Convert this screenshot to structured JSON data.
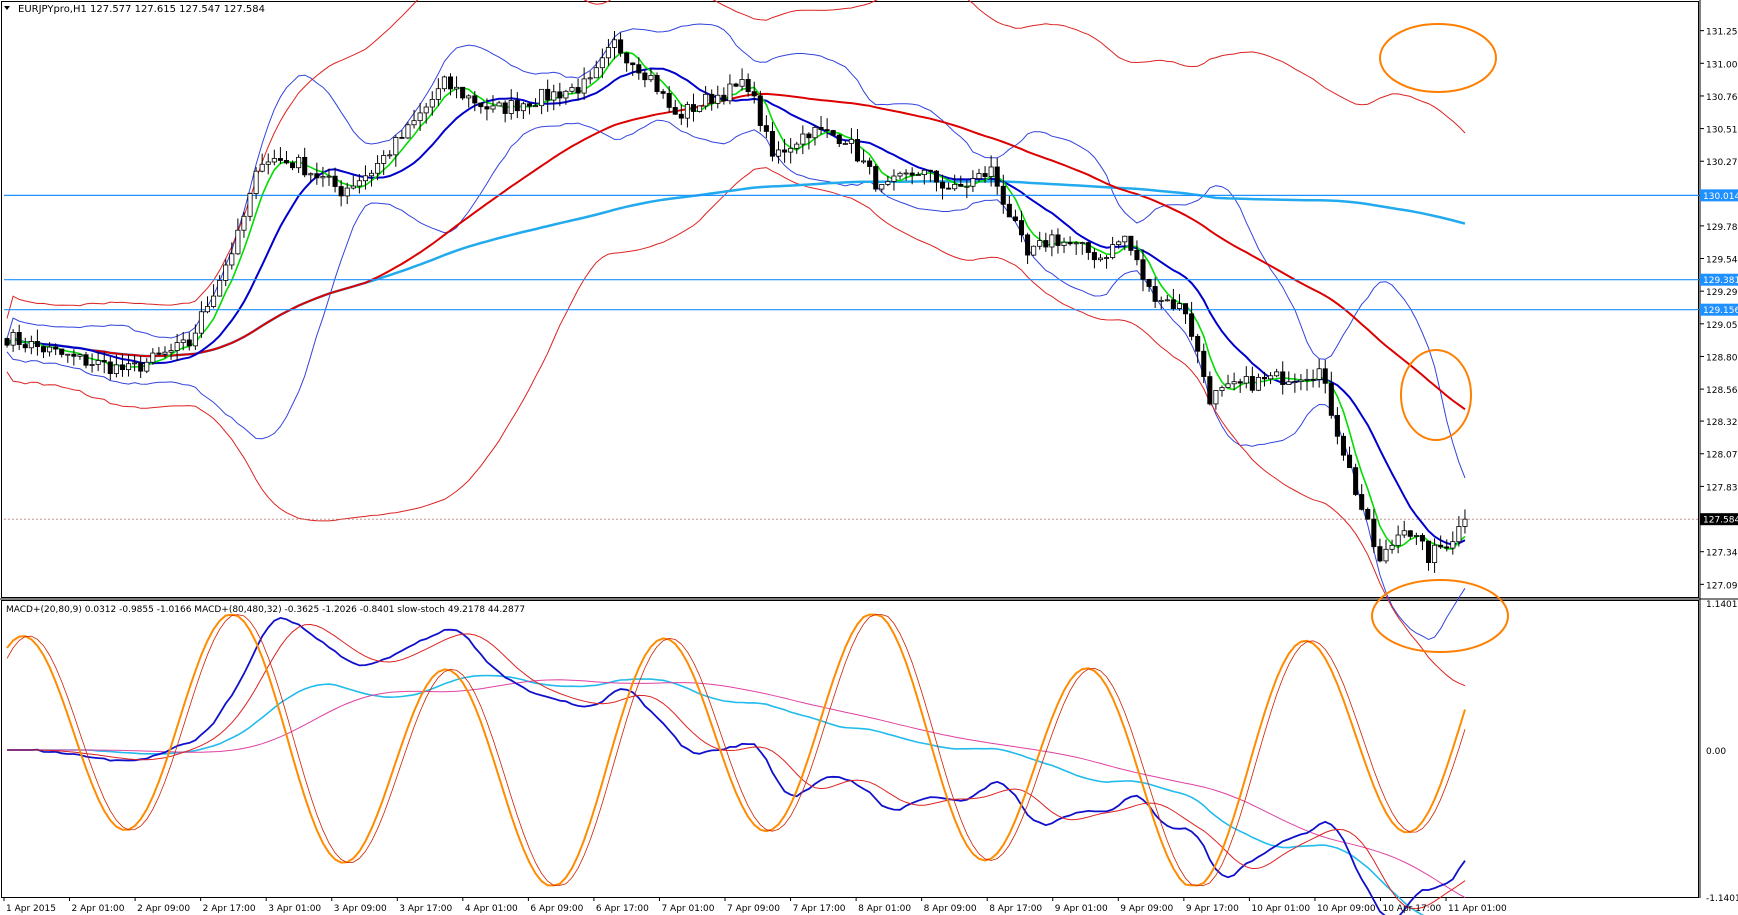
{
  "chart_data": [
    {
      "type": "candlestick",
      "symbol_header": "EURJPYpro,H1  127.577 127.615 127.547 127.584",
      "ylim": [
        127.0,
        131.45
      ],
      "y_ticks": [
        "131.250",
        "131.005",
        "130.760",
        "130.515",
        "130.270",
        "130.030",
        "129.785",
        "129.540",
        "129.295",
        "129.050",
        "128.805",
        "128.560",
        "128.320",
        "128.075",
        "127.830",
        "127.584",
        "127.340",
        "127.095"
      ],
      "price_tags": [
        {
          "label": "130.014",
          "value": 130.014
        },
        {
          "label": "129.381",
          "value": 129.381
        },
        {
          "label": "129.156",
          "value": 129.156
        },
        {
          "label": "127.584",
          "value": 127.584
        }
      ],
      "current_price": 127.584,
      "anchors": [
        {
          "i": 0,
          "y": 128.95
        },
        {
          "i": 10,
          "y": 128.8
        },
        {
          "i": 20,
          "y": 128.7
        },
        {
          "i": 30,
          "y": 128.9
        },
        {
          "i": 38,
          "y": 129.7
        },
        {
          "i": 42,
          "y": 130.3
        },
        {
          "i": 48,
          "y": 130.25
        },
        {
          "i": 55,
          "y": 130.05
        },
        {
          "i": 60,
          "y": 130.2
        },
        {
          "i": 66,
          "y": 130.5
        },
        {
          "i": 72,
          "y": 130.85
        },
        {
          "i": 80,
          "y": 130.65
        },
        {
          "i": 88,
          "y": 130.75
        },
        {
          "i": 96,
          "y": 130.85
        },
        {
          "i": 100,
          "y": 131.15
        },
        {
          "i": 106,
          "y": 130.9
        },
        {
          "i": 110,
          "y": 130.6
        },
        {
          "i": 116,
          "y": 130.75
        },
        {
          "i": 122,
          "y": 130.85
        },
        {
          "i": 126,
          "y": 130.3
        },
        {
          "i": 132,
          "y": 130.5
        },
        {
          "i": 138,
          "y": 130.45
        },
        {
          "i": 144,
          "y": 130.05
        },
        {
          "i": 150,
          "y": 130.2
        },
        {
          "i": 156,
          "y": 130.05
        },
        {
          "i": 162,
          "y": 130.2
        },
        {
          "i": 168,
          "y": 129.55
        },
        {
          "i": 172,
          "y": 129.7
        },
        {
          "i": 180,
          "y": 129.55
        },
        {
          "i": 184,
          "y": 129.7
        },
        {
          "i": 188,
          "y": 129.3
        },
        {
          "i": 194,
          "y": 129.15
        },
        {
          "i": 198,
          "y": 128.5
        },
        {
          "i": 204,
          "y": 128.6
        },
        {
          "i": 210,
          "y": 128.65
        },
        {
          "i": 216,
          "y": 128.7
        },
        {
          "i": 222,
          "y": 127.8
        },
        {
          "i": 226,
          "y": 127.25
        },
        {
          "i": 230,
          "y": 127.55
        },
        {
          "i": 234,
          "y": 127.3
        },
        {
          "i": 238,
          "y": 127.45
        },
        {
          "i": 240,
          "y": 127.584
        }
      ],
      "n_bars": 241,
      "x_ticks": [
        "1 Apr 2015",
        "2 Apr 01:00",
        "2 Apr 09:00",
        "2 Apr 17:00",
        "3 Apr 01:00",
        "3 Apr 09:00",
        "3 Apr 17:00",
        "4 Apr 01:00",
        "6 Apr 09:00",
        "6 Apr 17:00",
        "7 Apr 01:00",
        "7 Apr 09:00",
        "7 Apr 17:00",
        "8 Apr 01:00",
        "8 Apr 09:00",
        "8 Apr 17:00",
        "9 Apr 01:00",
        "9 Apr 09:00",
        "9 Apr 17:00",
        "10 Apr 01:00",
        "10 Apr 09:00",
        "10 Apr 17:00",
        "11 Apr 01:00"
      ],
      "levels": [
        130.014,
        129.381,
        129.156
      ],
      "colors": {
        "bull": "#ffffff",
        "bear": "#000000",
        "wick": "#000000",
        "ma_fast": "#00dd00",
        "ma_mid": "#0000cc",
        "ma_slow": "#dd0000",
        "ma_long": "#22aaee",
        "band_inner": "#3344dd",
        "band_outer": "#dd2222",
        "level": "#1e90ff",
        "highlight": "#ff7f00"
      }
    },
    {
      "type": "line",
      "header": "MACD+(20,80,9) 0.0312 -0.9855 -1.0166   MACD+(80,480,32) -0.3625 -1.2026 -0.8401   slow-stoch 49.2178 44.2877",
      "ylim": [
        -1.1401,
        1.1401
      ],
      "y_ticks": [
        "1.1401",
        "0.00",
        "-1.1401"
      ],
      "series": [
        {
          "name": "slow-stoch",
          "color": "#ff8c00",
          "kind": "oscillator"
        },
        {
          "name": "MACD+(20,80,9)",
          "color": "#1010cc",
          "kind": "macd-fast"
        },
        {
          "name": "MACD+(80,480,32)",
          "color": "#22bbee",
          "kind": "macd-slow"
        }
      ]
    }
  ]
}
